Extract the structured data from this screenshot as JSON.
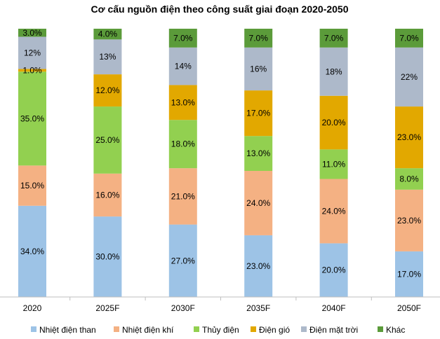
{
  "chart_data": {
    "type": "bar",
    "stacked": true,
    "title": "Cơ cấu nguồn điện theo công suất giai đoạn 2020-2050",
    "categories": [
      "2020",
      "2025F",
      "2030F",
      "2035F",
      "2040F",
      "2050F"
    ],
    "ylim": [
      0,
      100
    ],
    "grid": false,
    "legend_position": "bottom",
    "series": [
      {
        "name": "Nhiệt điện than",
        "color": "#9DC3E6",
        "values": [
          34,
          30,
          27,
          23,
          20,
          17
        ],
        "labels": [
          "34.0%",
          "30.0%",
          "27.0%",
          "23.0%",
          "20.0%",
          "17.0%"
        ]
      },
      {
        "name": "Nhiệt điện khí",
        "color": "#F4B183",
        "values": [
          15,
          16,
          21,
          24,
          24,
          23
        ],
        "labels": [
          "15.0%",
          "16.0%",
          "21.0%",
          "24.0%",
          "24.0%",
          "23.0%"
        ]
      },
      {
        "name": "Thủy điện",
        "color": "#92D050",
        "values": [
          35,
          25,
          18,
          13,
          11,
          8
        ],
        "labels": [
          "35.0%",
          "25.0%",
          "18.0%",
          "13.0%",
          "11.0%",
          "8.0%"
        ]
      },
      {
        "name": "Điện gió",
        "color": "#E2A800",
        "values": [
          1,
          12,
          13,
          17,
          20,
          23
        ],
        "labels": [
          "1.0%",
          "12.0%",
          "13.0%",
          "17.0%",
          "20.0%",
          "23.0%"
        ]
      },
      {
        "name": "Điện mặt trời",
        "color": "#ADB9CA",
        "values": [
          12,
          13,
          14,
          16,
          18,
          22
        ],
        "labels": [
          "12%",
          "13%",
          "14%",
          "16%",
          "18%",
          "22%"
        ]
      },
      {
        "name": "Khác",
        "color": "#5B9B3A",
        "values": [
          3,
          4,
          7,
          7,
          7,
          7
        ],
        "labels": [
          "3.0%",
          "4.0%",
          "7.0%",
          "7.0%",
          "7.0%",
          "7.0%"
        ]
      }
    ]
  }
}
